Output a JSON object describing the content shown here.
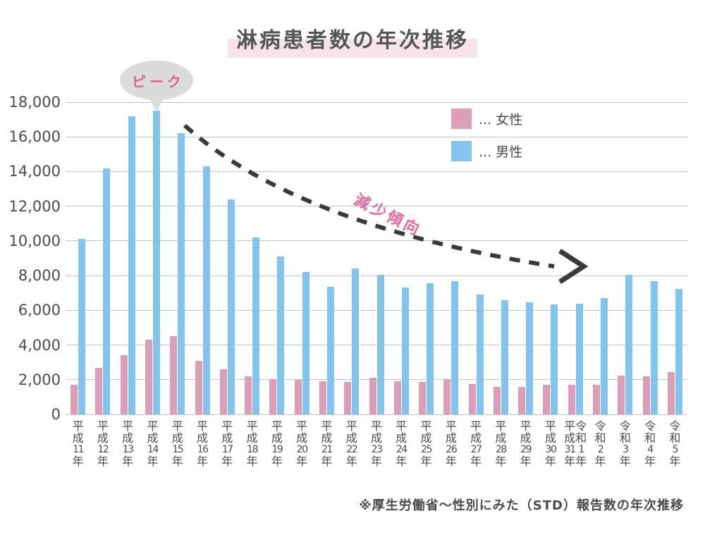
{
  "title": "淋病患者数の年次推移",
  "annotations": {
    "peak": "ピーク",
    "trend": "減少傾向"
  },
  "legend": {
    "female_label": "... 女性",
    "male_label": "... 男性"
  },
  "footnote": "※厚生労働省〜性別にみた（STD）報告数の年次推移",
  "colors": {
    "female": "#dc9db9",
    "male": "#82c4ee",
    "grid": "#c2c2c2",
    "text": "#4b4b4b",
    "balloon_bg": "#dbdbdb",
    "balloon_text": "#df6392",
    "trend_text": "#e5679b",
    "arrow": "#3a3a3a",
    "title_highlight": "#f8e2ec"
  },
  "y_axis": {
    "tick_labels": [
      "18,000",
      "16,000",
      "14,000",
      "12,000",
      "10,000",
      "8,000",
      "6,000",
      "4,000",
      "2,000",
      "0"
    ],
    "max": 18000,
    "step": 2000
  },
  "chart_data": {
    "type": "bar",
    "title": "淋病患者数の年次推移",
    "grid": true,
    "legend_position": "top-right",
    "ylim": [
      0,
      18000
    ],
    "categories": [
      "平成11年",
      "平成12年",
      "平成13年",
      "平成14年",
      "平成15年",
      "平成16年",
      "平成17年",
      "平成18年",
      "平成19年",
      "平成20年",
      "平成21年",
      "平成22年",
      "平成23年",
      "平成24年",
      "平成25年",
      "平成26年",
      "平成27年",
      "平成28年",
      "平成29年",
      "平成30年",
      "平成31年|令和1年",
      "令和2年",
      "令和3年",
      "令和4年",
      "令和5年"
    ],
    "series": [
      {
        "name": "女性",
        "color": "#dc9db9",
        "values": [
          1700,
          2700,
          3400,
          4300,
          4500,
          3100,
          2600,
          2200,
          2050,
          2000,
          1900,
          1850,
          2100,
          1900,
          1850,
          2050,
          1750,
          1600,
          1600,
          1700,
          1700,
          1700,
          2250,
          2200,
          2450
        ]
      },
      {
        "name": "男性",
        "color": "#82c4ee",
        "values": [
          10100,
          14200,
          17200,
          17500,
          16200,
          14300,
          12400,
          10200,
          9100,
          8200,
          7350,
          8400,
          8050,
          7300,
          7550,
          7700,
          6900,
          6600,
          6450,
          6350,
          6400,
          6700,
          8050,
          7700,
          7250
        ]
      }
    ]
  }
}
